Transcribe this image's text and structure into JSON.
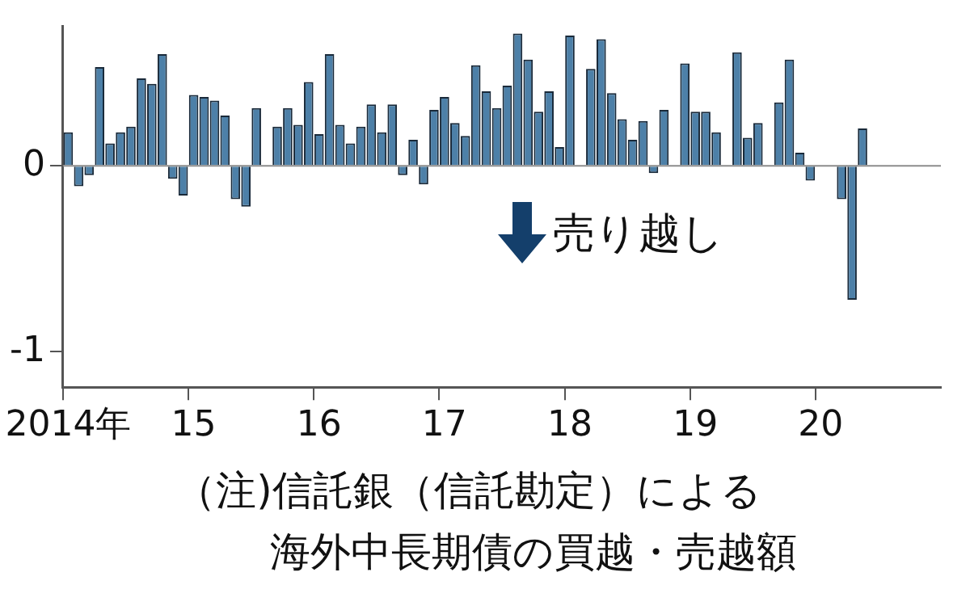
{
  "chart_data": {
    "type": "bar",
    "categories": [
      "2014年",
      null,
      null,
      null,
      null,
      null,
      null,
      null,
      null,
      null,
      null,
      null,
      "15",
      null,
      null,
      null,
      null,
      null,
      null,
      null,
      null,
      null,
      null,
      null,
      "16",
      null,
      null,
      null,
      null,
      null,
      null,
      null,
      null,
      null,
      null,
      null,
      "17",
      null,
      null,
      null,
      null,
      null,
      null,
      null,
      null,
      null,
      null,
      null,
      "18",
      null,
      null,
      null,
      null,
      null,
      null,
      null,
      null,
      null,
      null,
      null,
      "19",
      null,
      null,
      null,
      null,
      null,
      null,
      null,
      null,
      null,
      null,
      null,
      "20",
      null,
      null,
      null,
      null,
      null,
      null,
      null,
      null,
      null,
      null,
      null
    ],
    "values": [
      0.18,
      -0.11,
      -0.05,
      0.53,
      0.12,
      0.18,
      0.21,
      0.47,
      0.44,
      0.6,
      -0.07,
      -0.16,
      0.38,
      0.37,
      0.35,
      0.27,
      -0.18,
      -0.22,
      0.31,
      null,
      0.21,
      0.31,
      0.22,
      0.45,
      0.17,
      0.6,
      0.22,
      0.12,
      0.21,
      0.33,
      0.18,
      0.33,
      -0.05,
      0.14,
      -0.1,
      0.3,
      0.37,
      0.23,
      0.16,
      0.54,
      0.4,
      0.31,
      0.43,
      0.71,
      0.57,
      0.29,
      0.4,
      0.1,
      0.7,
      null,
      0.52,
      0.68,
      0.39,
      0.25,
      0.14,
      0.24,
      -0.04,
      0.3,
      null,
      0.55,
      0.29,
      0.29,
      0.18,
      null,
      0.61,
      0.15,
      0.23,
      null,
      0.34,
      0.57,
      0.07,
      -0.08,
      null,
      null,
      -0.18,
      -0.72,
      0.2,
      null,
      null,
      null,
      null,
      null,
      null,
      null
    ],
    "color": "#4d80a8",
    "ylim": [
      -1.19,
      0.75
    ],
    "yticks": [
      -1,
      0
    ],
    "grid": false,
    "legend": false,
    "ref_lines": [
      {
        "axis": "y",
        "value": 0,
        "color": "#8c8c8c"
      }
    ],
    "annotations": [
      "売り越し",
      "（注)信託銀（信託勘定）による",
      "海外中長期債の買越・売越額"
    ]
  }
}
